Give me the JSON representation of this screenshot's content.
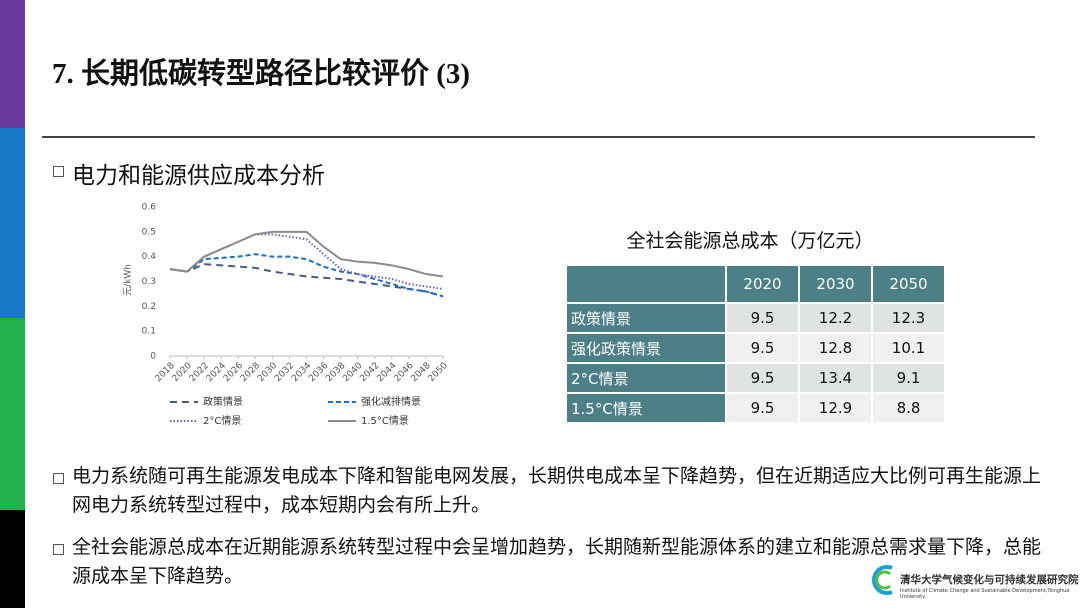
{
  "title": "7. 长期低碳转型路径比较评价 (3)",
  "section": "电力和能源供应成本分析",
  "chart_data": {
    "type": "line",
    "ylabel": "元/kWh",
    "x": [
      2018,
      2020,
      2022,
      2024,
      2026,
      2028,
      2030,
      2032,
      2034,
      2036,
      2038,
      2040,
      2042,
      2044,
      2046,
      2048,
      2050
    ],
    "xlim": [
      2018,
      2050
    ],
    "xticks": [
      2018,
      2020,
      2022,
      2024,
      2026,
      2028,
      2030,
      2032,
      2034,
      2036,
      2038,
      2040,
      2042,
      2044,
      2046,
      2048,
      2050
    ],
    "ylim": [
      0,
      0.6
    ],
    "yticks": [
      0,
      0.1,
      0.2,
      0.3,
      0.4,
      0.5,
      0.6
    ],
    "series": [
      {
        "name": "政策情景",
        "color": "#4a5a78",
        "values": [
          0.35,
          0.34,
          0.37,
          0.365,
          0.36,
          0.355,
          0.34,
          0.33,
          0.32,
          0.315,
          0.31,
          0.3,
          0.29,
          0.28,
          0.27,
          0.26,
          0.24
        ]
      },
      {
        "name": "强化减排情景",
        "color": "#1f6fbf",
        "values": [
          0.35,
          0.34,
          0.39,
          0.395,
          0.4,
          0.41,
          0.4,
          0.4,
          0.39,
          0.36,
          0.34,
          0.33,
          0.31,
          0.29,
          0.27,
          0.26,
          0.24
        ]
      },
      {
        "name": "2°C情景",
        "color": "#7b5ea7",
        "values": [
          0.35,
          0.34,
          0.4,
          0.43,
          0.46,
          0.49,
          0.49,
          0.48,
          0.47,
          0.41,
          0.35,
          0.33,
          0.32,
          0.31,
          0.29,
          0.28,
          0.27
        ]
      },
      {
        "name": "1.5°C情景",
        "color": "#8c8c8c",
        "values": [
          0.35,
          0.34,
          0.4,
          0.43,
          0.46,
          0.49,
          0.5,
          0.5,
          0.5,
          0.44,
          0.39,
          0.38,
          0.375,
          0.365,
          0.35,
          0.33,
          0.32
        ]
      }
    ]
  },
  "table": {
    "title": "全社会能源总成本（万亿元）",
    "columns": [
      "2020",
      "2030",
      "2050"
    ],
    "rows": [
      {
        "label": "政策情景",
        "values": [
          9.5,
          12.2,
          12.3
        ]
      },
      {
        "label": "强化政策情景",
        "values": [
          9.5,
          12.8,
          10.1
        ]
      },
      {
        "label": "2°C情景",
        "values": [
          9.5,
          13.4,
          9.1
        ]
      },
      {
        "label": "1.5°C情景",
        "values": [
          9.5,
          12.9,
          8.8
        ]
      }
    ]
  },
  "bullets": [
    "电力系统随可再生能源发电成本下降和智能电网发展，长期供电成本呈下降趋势，但在近期适应大比例可再生能源上网电力系统转型过程中，成本短期内会有所上升。",
    "全社会能源总成本在近期能源系统转型过程中会呈增加趋势，长期随新型能源体系的建立和能源总需求量下降，总能源成本呈下降趋势。"
  ],
  "logo": {
    "name": "清华大学气候变化与可持续发展研究院",
    "english": "Institute of Climate Change and Sustainable Development,Tsinghua University"
  }
}
